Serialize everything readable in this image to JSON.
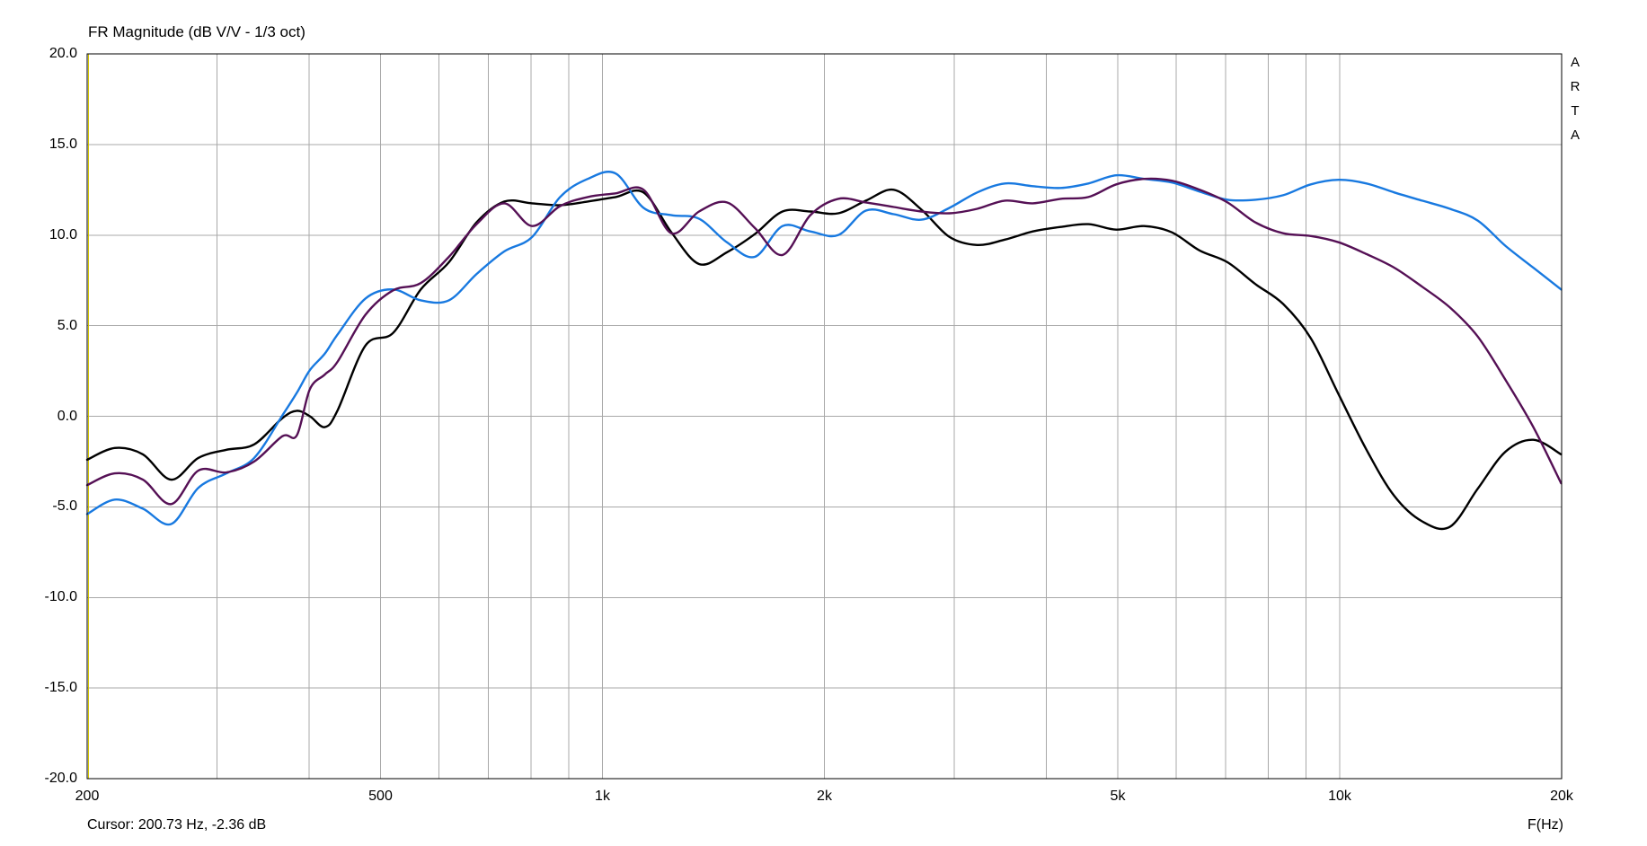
{
  "title": "FR Magnitude (dB V/V - 1/3 oct)",
  "watermark": {
    "letters": [
      "A",
      "R",
      "T",
      "A"
    ]
  },
  "cursor": {
    "text": "Cursor: 200.73 Hz, -2.36 dB",
    "freq_hz": 200.73,
    "line_color": "#d3c400"
  },
  "x_axis_unit_label": "F(Hz)",
  "axes": {
    "grid_color": "#a8a8a8",
    "y_ticks": [
      {
        "value": 20,
        "label": "20.0"
      },
      {
        "value": 15,
        "label": "15.0"
      },
      {
        "value": 10,
        "label": "10.0"
      },
      {
        "value": 5,
        "label": "5.0"
      },
      {
        "value": 0,
        "label": "0.0"
      },
      {
        "value": -5,
        "label": "-5.0"
      },
      {
        "value": -10,
        "label": "-10.0"
      },
      {
        "value": -15,
        "label": "-15.0"
      },
      {
        "value": -20,
        "label": "-20.0"
      }
    ],
    "x_ticks": [
      {
        "value": 200,
        "label": "200"
      },
      {
        "value": 500,
        "label": "500"
      },
      {
        "value": 1000,
        "label": "1k"
      },
      {
        "value": 2000,
        "label": "2k"
      },
      {
        "value": 5000,
        "label": "5k"
      },
      {
        "value": 10000,
        "label": "10k"
      },
      {
        "value": 20000,
        "label": "20k"
      }
    ],
    "x_gridlines": [
      300,
      400,
      500,
      600,
      700,
      800,
      900,
      1000,
      2000,
      3000,
      4000,
      5000,
      6000,
      7000,
      8000,
      9000,
      10000
    ],
    "y_gridlines": [
      -15,
      -10,
      -5,
      0,
      5,
      10,
      15
    ]
  },
  "chart_data": {
    "type": "line",
    "title": "FR Magnitude (dB V/V - 1/3 oct)",
    "xlabel": "F(Hz)",
    "ylabel": "dB",
    "x_scale": "log",
    "xlim": [
      200,
      20000
    ],
    "ylim": [
      -20,
      20
    ],
    "grid": true,
    "legend": "none",
    "x": [
      200,
      218,
      238,
      260,
      283,
      309,
      337,
      368,
      385,
      401,
      420,
      437,
      477,
      520,
      567,
      619,
      675,
      736,
      803,
      876,
      955,
      1042,
      1137,
      1240,
      1352,
      1475,
      1609,
      1755,
      1914,
      2088,
      2277,
      2484,
      2709,
      2955,
      3223,
      3515,
      3834,
      4182,
      4562,
      4976,
      5427,
      5920,
      6457,
      7043,
      7682,
      8379,
      9139,
      9968,
      10873,
      11859,
      12935,
      14109,
      15389,
      16786,
      18309,
      19969
    ],
    "series": [
      {
        "name": "black-curve",
        "color": "#000000",
        "values": [
          -2.4,
          -1.75,
          -2.1,
          -3.5,
          -2.3,
          -1.85,
          -1.55,
          -0.1,
          0.3,
          0.0,
          -0.6,
          0.3,
          3.9,
          4.6,
          7.0,
          8.5,
          10.7,
          11.85,
          11.75,
          11.65,
          11.85,
          12.1,
          12.35,
          10.15,
          8.4,
          9.05,
          10.05,
          11.3,
          11.3,
          11.2,
          11.9,
          12.5,
          11.4,
          9.9,
          9.45,
          9.75,
          10.2,
          10.45,
          10.6,
          10.3,
          10.5,
          10.15,
          9.15,
          8.5,
          7.3,
          6.2,
          4.3,
          1.2,
          -1.85,
          -4.4,
          -5.8,
          -6.1,
          -4.0,
          -1.95,
          -1.3,
          -2.1
        ]
      },
      {
        "name": "blue-curve",
        "color": "#1879e0",
        "values": [
          -5.4,
          -4.6,
          -5.1,
          -5.95,
          -3.95,
          -3.15,
          -2.3,
          0.05,
          1.3,
          2.55,
          3.45,
          4.5,
          6.5,
          7.0,
          6.4,
          6.4,
          7.85,
          9.1,
          9.9,
          12.1,
          13.1,
          13.4,
          11.5,
          11.1,
          10.9,
          9.6,
          8.8,
          10.5,
          10.2,
          10.0,
          11.35,
          11.15,
          10.85,
          11.5,
          12.35,
          12.85,
          12.7,
          12.6,
          12.85,
          13.3,
          13.1,
          12.9,
          12.4,
          11.95,
          11.95,
          12.2,
          12.8,
          13.05,
          12.85,
          12.35,
          11.9,
          11.45,
          10.8,
          9.4,
          8.2,
          7.0
        ]
      },
      {
        "name": "purple-curve",
        "color": "#551055",
        "values": [
          -3.8,
          -3.15,
          -3.5,
          -4.85,
          -3.0,
          -3.1,
          -2.5,
          -1.1,
          -1.05,
          1.5,
          2.3,
          3.0,
          5.6,
          6.95,
          7.35,
          8.8,
          10.6,
          11.75,
          10.5,
          11.6,
          12.1,
          12.3,
          12.5,
          10.1,
          11.3,
          11.8,
          10.4,
          8.9,
          11.1,
          12.0,
          11.8,
          11.55,
          11.3,
          11.2,
          11.45,
          11.9,
          11.75,
          12.0,
          12.1,
          12.8,
          13.1,
          13.0,
          12.5,
          11.8,
          10.7,
          10.1,
          9.95,
          9.6,
          8.95,
          8.2,
          7.15,
          6.0,
          4.4,
          2.0,
          -0.6,
          -3.7
        ]
      }
    ]
  }
}
